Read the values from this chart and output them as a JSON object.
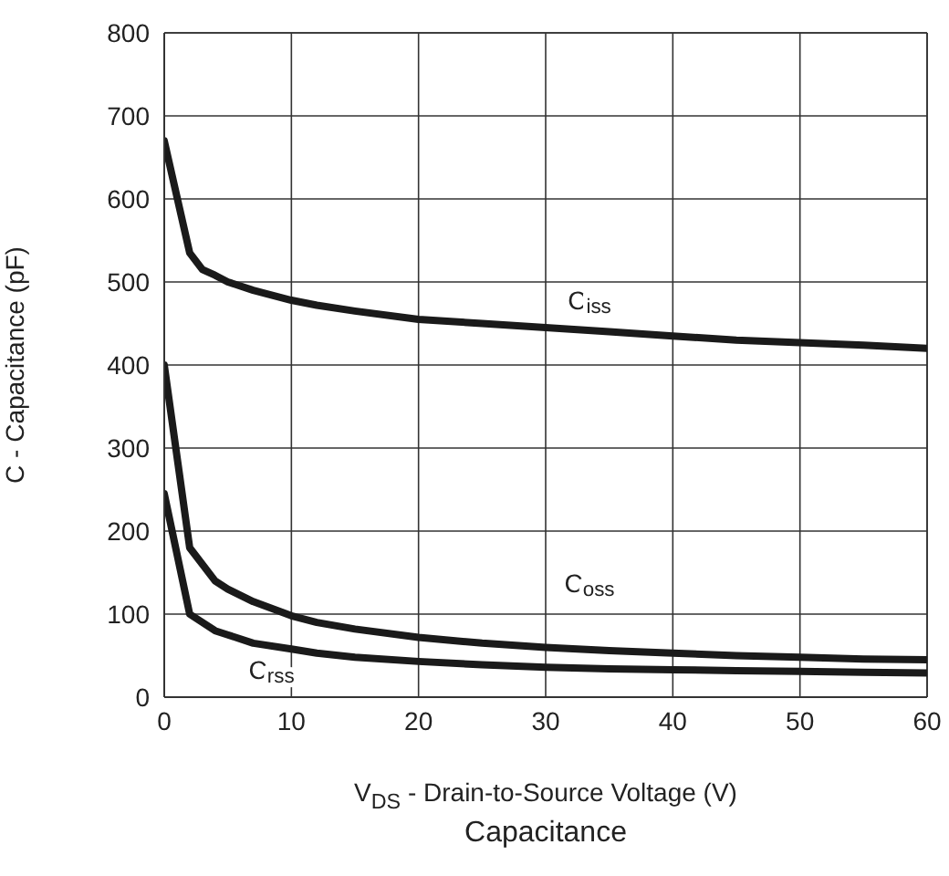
{
  "chart_data": {
    "type": "line",
    "title": "Capacitance",
    "xlabel": "V$_{DS}$  -  Drain-to-Source Voltage (V)",
    "ylabel": "C  -  Capacitance (pF)",
    "series": [
      {
        "name": "C$_{iss}$",
        "color": "#1a1a1a",
        "x": [
          0,
          2,
          3,
          4,
          5,
          7,
          10,
          12,
          15,
          20,
          25,
          30,
          35,
          40,
          45,
          50,
          55,
          60
        ],
        "values": [
          670,
          535,
          515,
          508,
          500,
          490,
          478,
          472,
          465,
          455,
          450,
          445,
          440,
          435,
          430,
          427,
          424,
          420
        ]
      },
      {
        "name": "C$_{oss}$",
        "color": "#1a1a1a",
        "x": [
          0,
          2,
          4,
          5,
          7,
          10,
          12,
          15,
          20,
          25,
          30,
          35,
          40,
          45,
          50,
          55,
          60
        ],
        "values": [
          400,
          180,
          140,
          130,
          115,
          98,
          90,
          82,
          72,
          65,
          60,
          56,
          53,
          50,
          48,
          46,
          45
        ]
      },
      {
        "name": "C$_{rss}$",
        "color": "#1a1a1a",
        "x": [
          0,
          2,
          4,
          5,
          7,
          10,
          12,
          15,
          20,
          25,
          30,
          35,
          40,
          45,
          50,
          55,
          60
        ],
        "values": [
          245,
          100,
          80,
          75,
          65,
          58,
          53,
          48,
          43,
          39,
          36,
          34,
          33,
          32,
          31,
          30,
          29
        ]
      }
    ],
    "xlim": [
      0,
      60
    ],
    "xticks": [
      0,
      10,
      20,
      30,
      40,
      50,
      60
    ],
    "ylim": [
      0,
      800
    ],
    "yticks": [
      0,
      100,
      200,
      300,
      400,
      500,
      600,
      700,
      800
    ],
    "grid": true,
    "marker": "none",
    "line_style": "solid"
  }
}
